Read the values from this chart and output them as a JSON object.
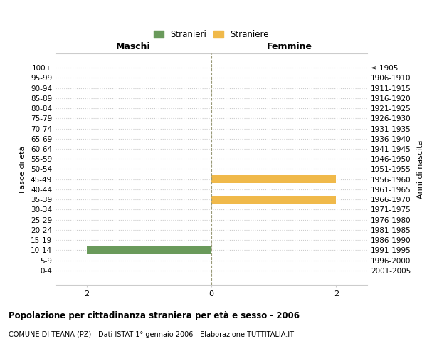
{
  "age_groups": [
    "100+",
    "95-99",
    "90-94",
    "85-89",
    "80-84",
    "75-79",
    "70-74",
    "65-69",
    "60-64",
    "55-59",
    "50-54",
    "45-49",
    "40-44",
    "35-39",
    "30-34",
    "25-29",
    "20-24",
    "15-19",
    "10-14",
    "5-9",
    "0-4"
  ],
  "birth_years": [
    "≤ 1905",
    "1906-1910",
    "1911-1915",
    "1916-1920",
    "1921-1925",
    "1926-1930",
    "1931-1935",
    "1936-1940",
    "1941-1945",
    "1946-1950",
    "1951-1955",
    "1956-1960",
    "1961-1965",
    "1966-1970",
    "1971-1975",
    "1976-1980",
    "1981-1985",
    "1986-1990",
    "1991-1995",
    "1996-2000",
    "2001-2005"
  ],
  "males": [
    0,
    0,
    0,
    0,
    0,
    0,
    0,
    0,
    0,
    0,
    0,
    0,
    0,
    0,
    0,
    0,
    0,
    0,
    2,
    0,
    0
  ],
  "females": [
    0,
    0,
    0,
    0,
    0,
    0,
    0,
    0,
    0,
    0,
    0,
    2,
    0,
    2,
    0,
    0,
    0,
    0,
    0,
    0,
    0
  ],
  "male_color": "#6a9a5b",
  "female_color": "#f0b94a",
  "title_bold": "Popolazione per cittadinanza straniera per età e sesso - 2006",
  "subtitle": "COMUNE DI TEANA (PZ) - Dati ISTAT 1° gennaio 2006 - Elaborazione TUTTITALIA.IT",
  "ylabel_left": "Fasce di età",
  "ylabel_right": "Anni di nascita",
  "xlabel_left": "Maschi",
  "xlabel_right": "Femmine",
  "legend_male": "Stranieri",
  "legend_female": "Straniere",
  "xlim": 2.5,
  "xticks": [
    -2,
    0,
    2
  ],
  "xtick_labels": [
    "2",
    "0",
    "2"
  ],
  "grid_color": "#cccccc",
  "background_color": "#ffffff",
  "bar_height": 0.75
}
